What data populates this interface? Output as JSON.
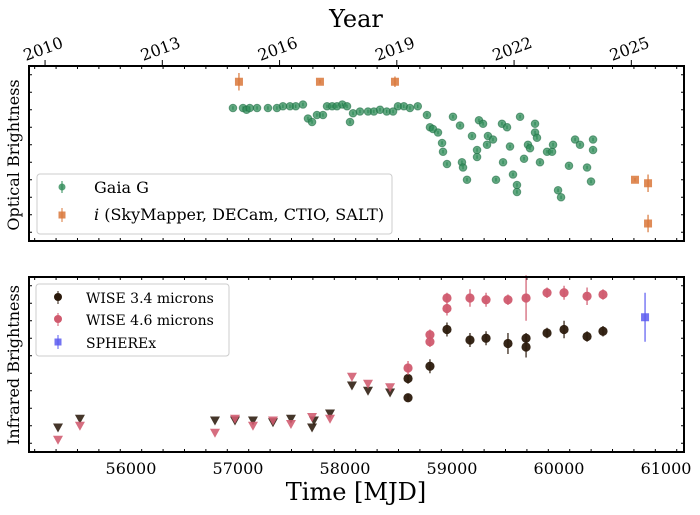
{
  "chart_data": [
    {
      "type": "scatter",
      "panel": "top",
      "top_axis_label": "Year",
      "top_ticks": [
        2010,
        2013,
        2016,
        2019,
        2022,
        2025
      ],
      "ylabel": "Optical Brightness",
      "xlim": [
        55047,
        61168
      ],
      "ylim": [
        0,
        10
      ],
      "y_tick_labels": false,
      "legend_placement": "lower-left",
      "series": [
        {
          "name": "Gaia G",
          "marker": "circle",
          "color": "#2e8b57",
          "x": [
            56953,
            57047,
            57080,
            57110,
            57178,
            57280,
            57364,
            57420,
            57486,
            57540,
            57607,
            57654,
            57692,
            57738,
            57794,
            57832,
            57880,
            57925,
            57975,
            58019,
            58047,
            58075,
            58140,
            58215,
            58270,
            58327,
            58390,
            58449,
            58495,
            58550,
            58607,
            58680,
            58766,
            58794,
            58822,
            58869,
            58907,
            58916,
            58953,
            59009,
            59075,
            59093,
            59103,
            59140,
            59187,
            59234,
            59234,
            59252,
            59290,
            59327,
            59336,
            59383,
            59411,
            59467,
            59477,
            59514,
            59542,
            59570,
            59607,
            59607,
            59636,
            59673,
            59710,
            59729,
            59776,
            59776,
            59794,
            59822,
            59888,
            59935,
            59944,
            59991,
            60019,
            60093,
            60150,
            60196,
            60262,
            60299,
            60318,
            60318
          ],
          "y": [
            7.6,
            7.6,
            7.5,
            7.6,
            7.6,
            7.6,
            7.6,
            7.7,
            7.7,
            7.7,
            7.8,
            7.0,
            6.8,
            7.2,
            7.2,
            7.7,
            7.7,
            7.7,
            7.8,
            7.7,
            6.8,
            7.3,
            7.4,
            7.4,
            7.4,
            7.5,
            7.4,
            7.4,
            7.7,
            7.7,
            7.6,
            7.7,
            7.2,
            6.5,
            6.4,
            6.2,
            5.6,
            5.1,
            4.4,
            7.1,
            6.6,
            4.5,
            4.2,
            3.5,
            6.0,
            5.2,
            4.8,
            6.9,
            6.7,
            5.5,
            6.0,
            5.8,
            3.5,
            6.7,
            4.5,
            6.5,
            5.4,
            3.8,
            3.2,
            2.8,
            7.1,
            4.7,
            5.5,
            5.3,
            6.7,
            6.2,
            5.9,
            4.5,
            5.1,
            5.1,
            5.5,
            2.9,
            2.5,
            4.3,
            5.8,
            5.5,
            4.2,
            3.4,
            5.8,
            5.2
          ],
          "yerr": 0.1
        },
        {
          "name": "i (SkyMapper, DECam, CTIO, SALT)",
          "marker": "square",
          "color": "#d9773a",
          "x": [
            57009,
            57766,
            58467,
            60710,
            60832,
            60832
          ],
          "y": [
            9.1,
            9.1,
            9.1,
            3.5,
            3.3,
            1.0
          ],
          "yerr": [
            0.5,
            0.1,
            0.3,
            0.1,
            0.5,
            0.5
          ]
        }
      ]
    },
    {
      "type": "scatter",
      "panel": "bottom",
      "xlabel": "Time [MJD]",
      "ylabel": "Infrared Brightness",
      "xlim": [
        55047,
        61168
      ],
      "ylim": [
        0,
        10
      ],
      "x_ticks": [
        56000,
        57000,
        58000,
        59000,
        60000,
        61000
      ],
      "y_tick_labels": false,
      "legend_placement": "upper-left",
      "series": [
        {
          "name": "WISE 3.4 microns",
          "marker": "circle",
          "color": "#2b1a0c",
          "x": [
            58589,
            58589,
            58794,
            58953,
            59168,
            59318,
            59523,
            59692,
            59692,
            59888,
            60047,
            60262,
            60411
          ],
          "y": [
            3.1,
            4.2,
            4.9,
            7.0,
            6.4,
            6.5,
            6.2,
            6.5,
            6.0,
            6.8,
            7.0,
            6.6,
            6.9
          ],
          "yerr": [
            0.2,
            0.3,
            0.4,
            0.4,
            0.4,
            0.4,
            0.6,
            0.3,
            0.6,
            0.3,
            0.5,
            0.3,
            0.3
          ],
          "upper_limits": {
            "x": [
              55318,
              55523,
              56785,
              56972,
              57140,
              57327,
              57495,
              57692,
              57710,
              57860,
              58065,
              58215,
              58421
            ],
            "y": [
              1.4,
              1.9,
              1.8,
              1.8,
              1.8,
              1.7,
              1.9,
              1.4,
              1.8,
              2.2,
              3.8,
              3.5,
              3.4
            ]
          }
        },
        {
          "name": "WISE 4.6 microns",
          "marker": "circle",
          "color": "#d05a6e",
          "x": [
            58589,
            58794,
            58794,
            58953,
            58953,
            59168,
            59318,
            59523,
            59692,
            59888,
            60047,
            60262,
            60411
          ],
          "y": [
            4.8,
            6.7,
            6.3,
            8.8,
            8.2,
            8.8,
            8.7,
            8.7,
            8.8,
            9.1,
            9.1,
            8.9,
            9.0
          ],
          "yerr": [
            0.4,
            0.3,
            0.3,
            0.3,
            0.4,
            0.5,
            0.4,
            0.3,
            1.3,
            0.3,
            0.4,
            0.5,
            0.3
          ],
          "upper_limits": {
            "x": [
              55318,
              55523,
              56785,
              56972,
              57140,
              57327,
              57495,
              57692,
              57860,
              58065,
              58215,
              58421
            ],
            "y": [
              0.7,
              1.5,
              1.1,
              1.9,
              1.5,
              1.8,
              1.6,
              2.0,
              1.9,
              4.3,
              3.9,
              3.7
            ]
          }
        },
        {
          "name": "SPHEREx",
          "marker": "square",
          "color": "#5b5bf0",
          "x": [
            60804
          ],
          "y": [
            7.7
          ],
          "yerr": [
            1.4
          ]
        }
      ]
    }
  ],
  "legend_top": {
    "gaia": "Gaia G",
    "i_italic": "i",
    "i_rest": " (SkyMapper, DECam, CTIO, SALT)"
  },
  "legend_bottom": {
    "w1": "WISE 3.4 microns",
    "w2": "WISE 4.6 microns",
    "spherex": "SPHEREx"
  }
}
